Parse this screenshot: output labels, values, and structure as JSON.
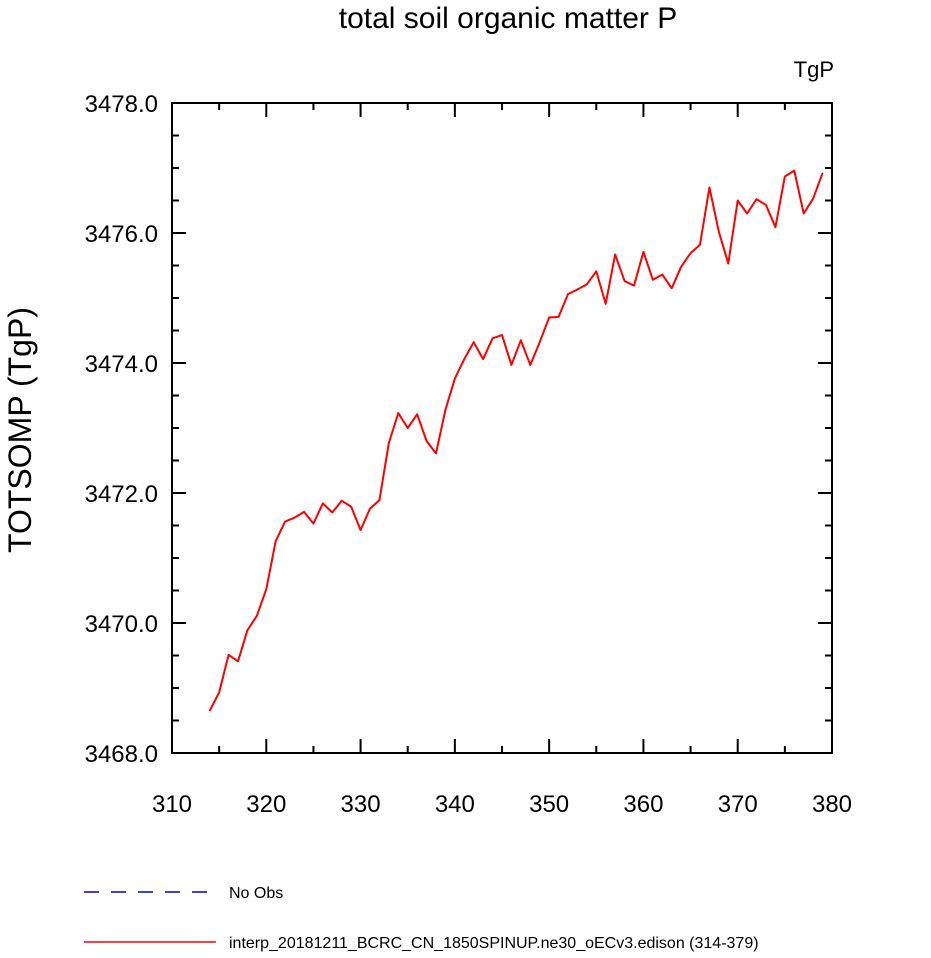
{
  "chart_data": {
    "type": "line",
    "title": "total soil organic matter P",
    "units_label": "TgP",
    "xlabel": "",
    "ylabel": "TOTSOMP  (TgP)",
    "xlim": [
      310,
      380
    ],
    "ylim": [
      3468.0,
      3478.0
    ],
    "x_ticks": [
      310,
      320,
      330,
      340,
      350,
      360,
      370,
      380
    ],
    "x_tick_labels": [
      "310",
      "320",
      "330",
      "340",
      "350",
      "360",
      "370",
      "380"
    ],
    "y_ticks": [
      3468.0,
      3470.0,
      3472.0,
      3474.0,
      3476.0,
      3478.0
    ],
    "y_tick_labels": [
      "3468.0",
      "3470.0",
      "3472.0",
      "3474.0",
      "3476.0",
      "3478.0"
    ],
    "grid": false,
    "legend_position": "bottom",
    "series": [
      {
        "name": "No Obs",
        "color": "#0000cc",
        "dash": "dashed",
        "x": [],
        "y": []
      },
      {
        "name": "interp_20181211_BCRC_CN_1850SPINUP.ne30_oECv3.edison (314-379)",
        "color": "#ff0000",
        "dash": "solid",
        "x": [
          314,
          315,
          316,
          317,
          318,
          319,
          320,
          321,
          322,
          323,
          324,
          325,
          326,
          327,
          328,
          329,
          330,
          331,
          332,
          333,
          334,
          335,
          336,
          337,
          338,
          339,
          340,
          341,
          342,
          343,
          344,
          345,
          346,
          347,
          348,
          349,
          350,
          351,
          352,
          353,
          354,
          355,
          356,
          357,
          358,
          359,
          360,
          361,
          362,
          363,
          364,
          365,
          366,
          367,
          368,
          369,
          370,
          371,
          372,
          373,
          374,
          375,
          376,
          377,
          378,
          379
        ],
        "y": [
          3468.65,
          3468.93,
          3469.51,
          3469.41,
          3469.89,
          3470.11,
          3470.52,
          3471.26,
          3471.56,
          3471.62,
          3471.71,
          3471.53,
          3471.84,
          3471.7,
          3471.88,
          3471.79,
          3471.43,
          3471.76,
          3471.89,
          3472.77,
          3473.23,
          3473.0,
          3473.21,
          3472.8,
          3472.61,
          3473.28,
          3473.76,
          3474.06,
          3474.32,
          3474.06,
          3474.38,
          3474.43,
          3473.97,
          3474.35,
          3473.97,
          3474.32,
          3474.7,
          3474.71,
          3475.06,
          3475.13,
          3475.21,
          3475.41,
          3474.91,
          3475.67,
          3475.26,
          3475.19,
          3475.71,
          3475.28,
          3475.36,
          3475.15,
          3475.48,
          3475.69,
          3475.82,
          3476.7,
          3476.02,
          3475.53,
          3476.5,
          3476.3,
          3476.52,
          3476.43,
          3476.09,
          3476.87,
          3476.96,
          3476.3,
          3476.53,
          3476.92
        ]
      }
    ]
  }
}
